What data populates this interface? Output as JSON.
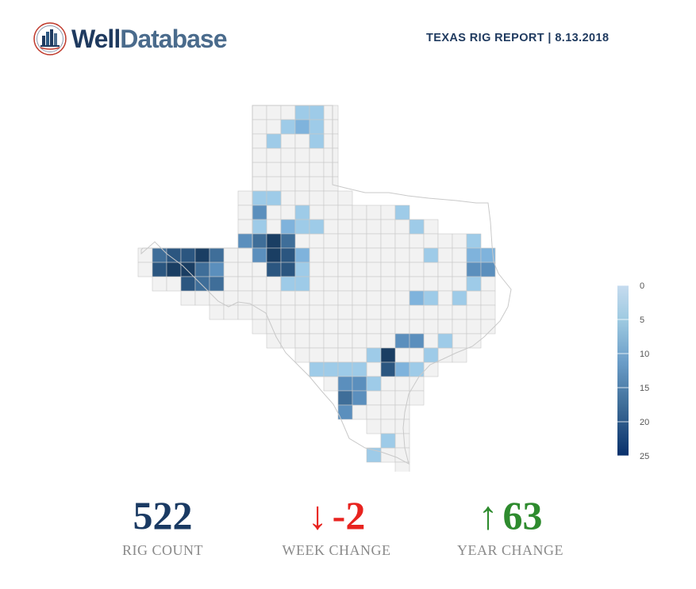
{
  "brand": {
    "name_part1": "Well",
    "name_part2": "Database",
    "color_primary": "#1f3a5f",
    "color_secondary": "#4a6b8c"
  },
  "report": {
    "title": "TEXAS RIG REPORT | 8.13.2018"
  },
  "legend": {
    "ticks": [
      "0",
      "5",
      "10",
      "15",
      "20",
      "25"
    ],
    "range": [
      0,
      25
    ],
    "color_low": "#9ecae1",
    "color_high": "#08306b"
  },
  "map": {
    "colors": {
      "none": "#f2f2f2",
      "border": "#c9c9c9",
      "c1": "#9ecbe8",
      "c2": "#7fb3dc",
      "c3": "#5b8fbd",
      "c4": "#3f6e99",
      "c5": "#2b5680",
      "c6": "#1a3e63"
    }
  },
  "stats": {
    "rig_count": {
      "value": "522",
      "label": "RIG COUNT",
      "color": "#1a3a63"
    },
    "week_change": {
      "arrow": "↓",
      "value": "-2",
      "label": "WEEK CHANGE",
      "color": "#e8231f"
    },
    "year_change": {
      "arrow": "↑",
      "value": "63",
      "label": "YEAR CHANGE",
      "color": "#2e8b2e"
    }
  }
}
